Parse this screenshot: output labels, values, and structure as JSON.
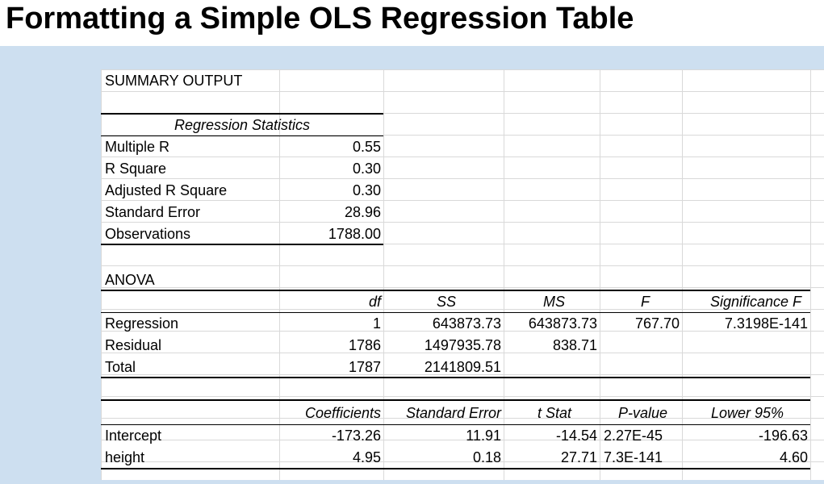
{
  "title": "Formatting a Simple OLS Regression Table",
  "sheet": {
    "summary_output": "SUMMARY OUTPUT",
    "regression_statistics": {
      "heading": "Regression Statistics",
      "rows": [
        {
          "label": "Multiple R",
          "value": "0.55"
        },
        {
          "label": "R Square",
          "value": "0.30"
        },
        {
          "label": "Adjusted R Square",
          "value": "0.30"
        },
        {
          "label": "Standard Error",
          "value": "28.96"
        },
        {
          "label": "Observations",
          "value": "1788.00"
        }
      ]
    },
    "anova": {
      "heading": "ANOVA",
      "headers": [
        "df",
        "SS",
        "MS",
        "F",
        "Significance F"
      ],
      "rows": [
        {
          "label": "Regression",
          "df": "1",
          "ss": "643873.73",
          "ms": "643873.73",
          "f": "767.70",
          "sig": "7.3198E-141"
        },
        {
          "label": "Residual",
          "df": "1786",
          "ss": "1497935.78",
          "ms": "838.71",
          "f": "",
          "sig": ""
        },
        {
          "label": "Total",
          "df": "1787",
          "ss": "2141809.51",
          "ms": "",
          "f": "",
          "sig": ""
        }
      ]
    },
    "coefficients": {
      "headers": [
        "Coefficients",
        "Standard Error",
        "t Stat",
        "P-value",
        "Lower 95%"
      ],
      "rows": [
        {
          "label": "Intercept",
          "coef": "-173.26",
          "se": "11.91",
          "t": "-14.54",
          "p": "2.27E-45",
          "lower": "-196.63"
        },
        {
          "label": "height",
          "coef": "4.95",
          "se": "0.18",
          "t": "27.71",
          "p": "7.3E-141",
          "lower": "4.60"
        }
      ]
    }
  }
}
